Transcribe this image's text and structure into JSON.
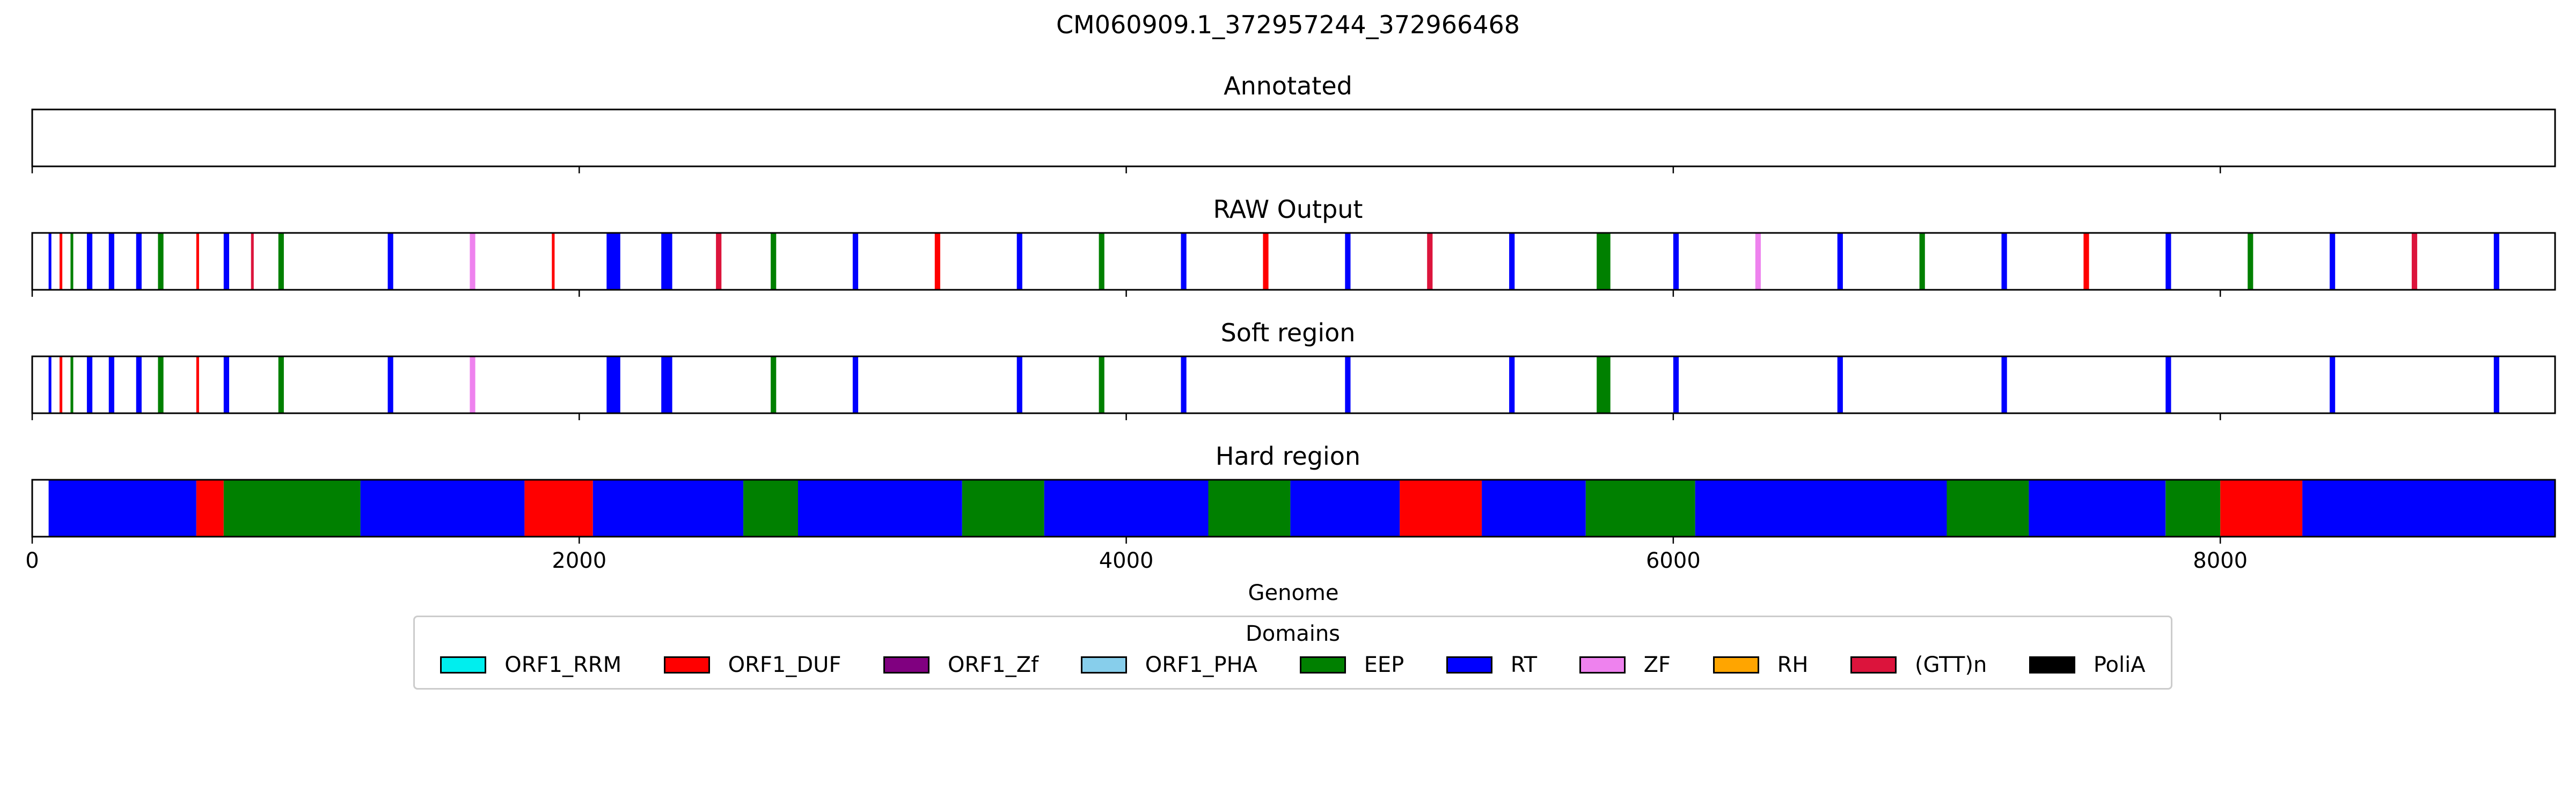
{
  "chart_data": {
    "type": "bar",
    "title": "CM060909.1_372957244_372966468",
    "xlabel": "Genome",
    "xlim": [
      0,
      9224
    ],
    "xticks": [
      0,
      2000,
      4000,
      6000,
      8000
    ],
    "tracks": [
      {
        "title": "Annotated",
        "segments": []
      },
      {
        "title": "RAW Output",
        "segments": [
          {
            "start": 60,
            "end": 70,
            "domain": "RT"
          },
          {
            "start": 100,
            "end": 110,
            "domain": "ORF1_DUF"
          },
          {
            "start": 140,
            "end": 150,
            "domain": "EEP"
          },
          {
            "start": 200,
            "end": 220,
            "domain": "RT"
          },
          {
            "start": 280,
            "end": 300,
            "domain": "RT"
          },
          {
            "start": 380,
            "end": 400,
            "domain": "RT"
          },
          {
            "start": 460,
            "end": 480,
            "domain": "EEP"
          },
          {
            "start": 600,
            "end": 610,
            "domain": "ORF1_DUF"
          },
          {
            "start": 700,
            "end": 720,
            "domain": "RT"
          },
          {
            "start": 800,
            "end": 810,
            "domain": "(GTT)n"
          },
          {
            "start": 900,
            "end": 920,
            "domain": "EEP"
          },
          {
            "start": 1300,
            "end": 1320,
            "domain": "RT"
          },
          {
            "start": 1600,
            "end": 1620,
            "domain": "ZF"
          },
          {
            "start": 1900,
            "end": 1910,
            "domain": "ORF1_DUF"
          },
          {
            "start": 2100,
            "end": 2150,
            "domain": "RT"
          },
          {
            "start": 2300,
            "end": 2340,
            "domain": "RT"
          },
          {
            "start": 2500,
            "end": 2520,
            "domain": "(GTT)n"
          },
          {
            "start": 2700,
            "end": 2720,
            "domain": "EEP"
          },
          {
            "start": 3000,
            "end": 3020,
            "domain": "RT"
          },
          {
            "start": 3300,
            "end": 3320,
            "domain": "ORF1_DUF"
          },
          {
            "start": 3600,
            "end": 3620,
            "domain": "RT"
          },
          {
            "start": 3900,
            "end": 3920,
            "domain": "EEP"
          },
          {
            "start": 4200,
            "end": 4220,
            "domain": "RT"
          },
          {
            "start": 4500,
            "end": 4520,
            "domain": "ORF1_DUF"
          },
          {
            "start": 4800,
            "end": 4820,
            "domain": "RT"
          },
          {
            "start": 5100,
            "end": 5120,
            "domain": "(GTT)n"
          },
          {
            "start": 5400,
            "end": 5420,
            "domain": "RT"
          },
          {
            "start": 5720,
            "end": 5770,
            "domain": "EEP"
          },
          {
            "start": 6000,
            "end": 6020,
            "domain": "RT"
          },
          {
            "start": 6300,
            "end": 6320,
            "domain": "ZF"
          },
          {
            "start": 6600,
            "end": 6620,
            "domain": "RT"
          },
          {
            "start": 6900,
            "end": 6920,
            "domain": "EEP"
          },
          {
            "start": 7200,
            "end": 7220,
            "domain": "RT"
          },
          {
            "start": 7500,
            "end": 7520,
            "domain": "ORF1_DUF"
          },
          {
            "start": 7800,
            "end": 7820,
            "domain": "RT"
          },
          {
            "start": 8100,
            "end": 8120,
            "domain": "EEP"
          },
          {
            "start": 8400,
            "end": 8420,
            "domain": "RT"
          },
          {
            "start": 8700,
            "end": 8720,
            "domain": "(GTT)n"
          },
          {
            "start": 9000,
            "end": 9020,
            "domain": "RT"
          }
        ]
      },
      {
        "title": "Soft region",
        "segments": [
          {
            "start": 60,
            "end": 70,
            "domain": "RT"
          },
          {
            "start": 100,
            "end": 110,
            "domain": "ORF1_DUF"
          },
          {
            "start": 140,
            "end": 150,
            "domain": "EEP"
          },
          {
            "start": 200,
            "end": 220,
            "domain": "RT"
          },
          {
            "start": 280,
            "end": 300,
            "domain": "RT"
          },
          {
            "start": 380,
            "end": 400,
            "domain": "RT"
          },
          {
            "start": 460,
            "end": 480,
            "domain": "EEP"
          },
          {
            "start": 600,
            "end": 610,
            "domain": "ORF1_DUF"
          },
          {
            "start": 700,
            "end": 720,
            "domain": "RT"
          },
          {
            "start": 900,
            "end": 920,
            "domain": "EEP"
          },
          {
            "start": 1300,
            "end": 1320,
            "domain": "RT"
          },
          {
            "start": 1600,
            "end": 1620,
            "domain": "ZF"
          },
          {
            "start": 2100,
            "end": 2150,
            "domain": "RT"
          },
          {
            "start": 2300,
            "end": 2340,
            "domain": "RT"
          },
          {
            "start": 2700,
            "end": 2720,
            "domain": "EEP"
          },
          {
            "start": 3000,
            "end": 3020,
            "domain": "RT"
          },
          {
            "start": 3600,
            "end": 3620,
            "domain": "RT"
          },
          {
            "start": 3900,
            "end": 3920,
            "domain": "EEP"
          },
          {
            "start": 4200,
            "end": 4220,
            "domain": "RT"
          },
          {
            "start": 4800,
            "end": 4820,
            "domain": "RT"
          },
          {
            "start": 5400,
            "end": 5420,
            "domain": "RT"
          },
          {
            "start": 5720,
            "end": 5770,
            "domain": "EEP"
          },
          {
            "start": 6000,
            "end": 6020,
            "domain": "RT"
          },
          {
            "start": 6600,
            "end": 6620,
            "domain": "RT"
          },
          {
            "start": 7200,
            "end": 7220,
            "domain": "RT"
          },
          {
            "start": 7800,
            "end": 7820,
            "domain": "RT"
          },
          {
            "start": 8400,
            "end": 8420,
            "domain": "RT"
          },
          {
            "start": 9000,
            "end": 9020,
            "domain": "RT"
          }
        ]
      },
      {
        "title": "Hard region",
        "segments": [
          {
            "start": 60,
            "end": 600,
            "domain": "RT"
          },
          {
            "start": 600,
            "end": 700,
            "domain": "ORF1_DUF"
          },
          {
            "start": 700,
            "end": 1200,
            "domain": "EEP"
          },
          {
            "start": 1200,
            "end": 1800,
            "domain": "RT"
          },
          {
            "start": 1800,
            "end": 2050,
            "domain": "ORF1_DUF"
          },
          {
            "start": 2050,
            "end": 2600,
            "domain": "RT"
          },
          {
            "start": 2600,
            "end": 2800,
            "domain": "EEP"
          },
          {
            "start": 2800,
            "end": 3400,
            "domain": "RT"
          },
          {
            "start": 3400,
            "end": 3700,
            "domain": "EEP"
          },
          {
            "start": 3700,
            "end": 4300,
            "domain": "RT"
          },
          {
            "start": 4300,
            "end": 4600,
            "domain": "EEP"
          },
          {
            "start": 4600,
            "end": 5000,
            "domain": "RT"
          },
          {
            "start": 5000,
            "end": 5300,
            "domain": "ORF1_DUF"
          },
          {
            "start": 5300,
            "end": 5680,
            "domain": "RT"
          },
          {
            "start": 5680,
            "end": 6080,
            "domain": "EEP"
          },
          {
            "start": 6080,
            "end": 7000,
            "domain": "RT"
          },
          {
            "start": 7000,
            "end": 7300,
            "domain": "EEP"
          },
          {
            "start": 7300,
            "end": 7800,
            "domain": "RT"
          },
          {
            "start": 7800,
            "end": 8000,
            "domain": "EEP"
          },
          {
            "start": 8000,
            "end": 8300,
            "domain": "ORF1_DUF"
          },
          {
            "start": 8300,
            "end": 9224,
            "domain": "RT"
          }
        ]
      }
    ],
    "legend": {
      "title": "Domains",
      "placement": "bottom",
      "items": [
        {
          "label": "ORF1_RRM",
          "color": "#00eeee"
        },
        {
          "label": "ORF1_DUF",
          "color": "#ff0000"
        },
        {
          "label": "ORF1_Zf",
          "color": "#800080"
        },
        {
          "label": "ORF1_PHA",
          "color": "#87ceeb"
        },
        {
          "label": "EEP",
          "color": "#008000"
        },
        {
          "label": "RT",
          "color": "#0000ff"
        },
        {
          "label": "ZF",
          "color": "#ee82ee"
        },
        {
          "label": "RH",
          "color": "#ffa500"
        },
        {
          "label": "(GTT)n",
          "color": "#dc143c"
        },
        {
          "label": "PoliA",
          "color": "#000000"
        }
      ]
    }
  }
}
